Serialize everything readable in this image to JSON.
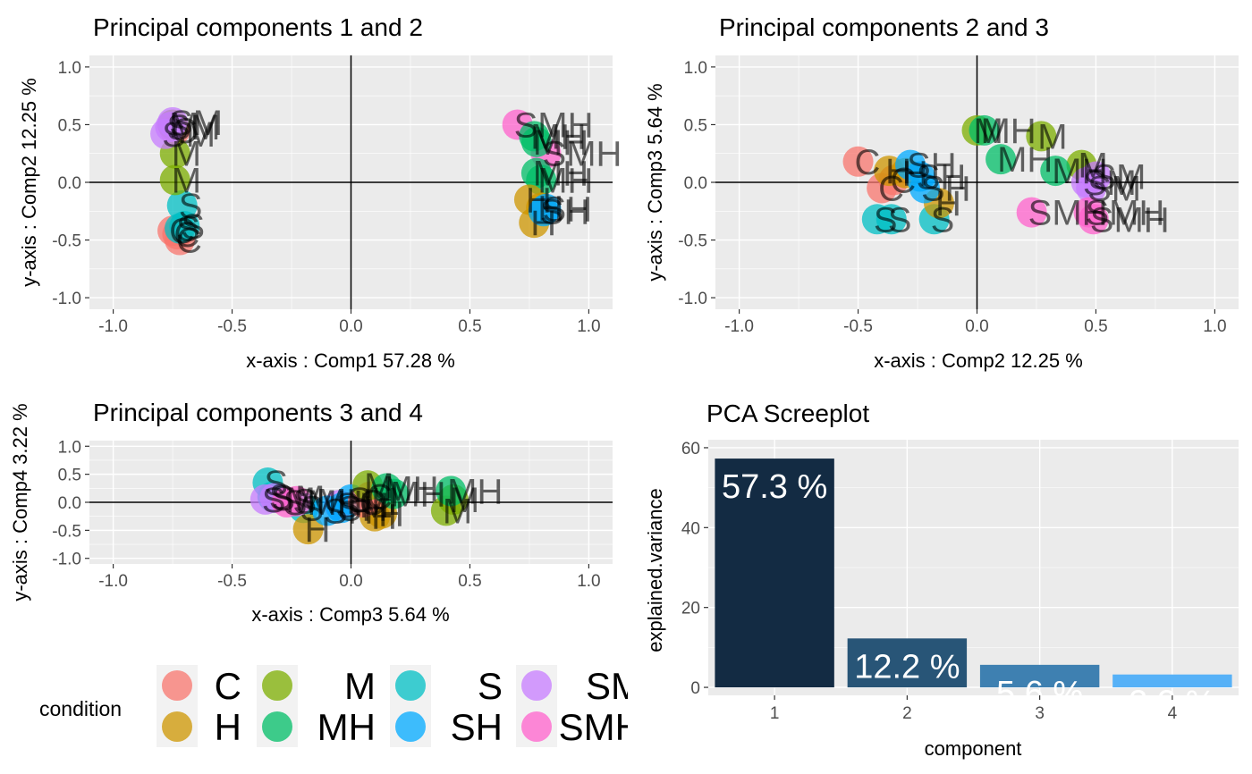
{
  "figure": {
    "legend": {
      "title": "condition",
      "entries": [
        {
          "label": "C",
          "color": "#F8766D"
        },
        {
          "label": "H",
          "color": "#CD9600"
        },
        {
          "label": "M",
          "color": "#7CAE00"
        },
        {
          "label": "MH",
          "color": "#00BE67"
        },
        {
          "label": "S",
          "color": "#00BFC4"
        },
        {
          "label": "SH",
          "color": "#00A9FF"
        },
        {
          "label": "SM",
          "color": "#C77CFF"
        },
        {
          "label": "SMH",
          "color": "#FF61CC"
        }
      ]
    }
  },
  "chart_data": [
    {
      "type": "scatter",
      "title": "Principal components 1 and 2",
      "xlabel": "x-axis : Comp1  57.28 %",
      "ylabel": "y-axis : Comp2  12.25 %",
      "xlim": [
        -1.1,
        1.1
      ],
      "ylim": [
        -1.1,
        1.1
      ],
      "x_ticks": [
        -1.0,
        -0.5,
        0.0,
        0.5,
        1.0
      ],
      "x_tick_labels": [
        "-1.0",
        "-0.5",
        "0.0",
        "0.5",
        "1.0"
      ],
      "y_ticks": [
        -1.0,
        -0.5,
        0.0,
        0.5,
        1.0
      ],
      "y_tick_labels": [
        "-1.0",
        "-0.5",
        "0.0",
        "0.5",
        "1.0"
      ],
      "points": [
        {
          "x": -0.75,
          "y": -0.42,
          "label": "C"
        },
        {
          "x": -0.73,
          "y": -0.45,
          "label": "C"
        },
        {
          "x": -0.72,
          "y": -0.5,
          "label": "C"
        },
        {
          "x": -0.74,
          "y": 0.45,
          "label": "C"
        },
        {
          "x": -0.72,
          "y": -0.4,
          "label": "S"
        },
        {
          "x": -0.7,
          "y": -0.38,
          "label": "S"
        },
        {
          "x": -0.71,
          "y": -0.2,
          "label": "S"
        },
        {
          "x": -0.74,
          "y": 0.25,
          "label": "M"
        },
        {
          "x": -0.74,
          "y": 0.02,
          "label": "M"
        },
        {
          "x": -0.75,
          "y": 0.5,
          "label": "M"
        },
        {
          "x": -0.78,
          "y": 0.42,
          "label": "SM"
        },
        {
          "x": -0.76,
          "y": 0.48,
          "label": "SM"
        },
        {
          "x": -0.75,
          "y": 0.52,
          "label": "SM"
        },
        {
          "x": 0.7,
          "y": 0.5,
          "label": "SMH"
        },
        {
          "x": 0.82,
          "y": 0.25,
          "label": "SMH"
        },
        {
          "x": 0.77,
          "y": 0.4,
          "label": "MH"
        },
        {
          "x": 0.78,
          "y": 0.35,
          "label": "MH"
        },
        {
          "x": 0.78,
          "y": 0.08,
          "label": "MH"
        },
        {
          "x": 0.8,
          "y": 0.02,
          "label": "MH"
        },
        {
          "x": 0.75,
          "y": -0.15,
          "label": "H"
        },
        {
          "x": 0.77,
          "y": -0.35,
          "label": "H"
        },
        {
          "x": 0.8,
          "y": -0.22,
          "label": "H"
        },
        {
          "x": 0.81,
          "y": -0.25,
          "label": "SH"
        },
        {
          "x": 0.82,
          "y": -0.23,
          "label": "SH"
        }
      ]
    },
    {
      "type": "scatter",
      "title": "Principal components 2 and 3",
      "xlabel": "x-axis : Comp2  12.25 %",
      "ylabel": "y-axis : Comp3  5.64 %",
      "xlim": [
        -1.1,
        1.1
      ],
      "ylim": [
        -1.1,
        1.1
      ],
      "x_ticks": [
        -1.0,
        -0.5,
        0.0,
        0.5,
        1.0
      ],
      "x_tick_labels": [
        "-1.0",
        "-0.5",
        "0.0",
        "0.5",
        "1.0"
      ],
      "y_ticks": [
        -1.0,
        -0.5,
        0.0,
        0.5,
        1.0
      ],
      "y_tick_labels": [
        "-1.0",
        "-0.5",
        "0.0",
        "0.5",
        "1.0"
      ],
      "points": [
        {
          "x": -0.5,
          "y": 0.18,
          "label": "C"
        },
        {
          "x": -0.4,
          "y": -0.05,
          "label": "C"
        },
        {
          "x": -0.35,
          "y": 0.02,
          "label": "C"
        },
        {
          "x": -0.42,
          "y": -0.32,
          "label": "S"
        },
        {
          "x": -0.36,
          "y": -0.32,
          "label": "S"
        },
        {
          "x": -0.18,
          "y": -0.32,
          "label": "S"
        },
        {
          "x": -0.37,
          "y": 0.1,
          "label": "H"
        },
        {
          "x": -0.3,
          "y": 0.08,
          "label": "H"
        },
        {
          "x": -0.16,
          "y": -0.18,
          "label": "H"
        },
        {
          "x": -0.28,
          "y": 0.15,
          "label": "SH"
        },
        {
          "x": -0.24,
          "y": 0.05,
          "label": "SH"
        },
        {
          "x": -0.22,
          "y": -0.05,
          "label": "SH"
        },
        {
          "x": 0.0,
          "y": 0.45,
          "label": "M"
        },
        {
          "x": 0.27,
          "y": 0.4,
          "label": "M"
        },
        {
          "x": 0.44,
          "y": 0.15,
          "label": "M"
        },
        {
          "x": 0.03,
          "y": 0.45,
          "label": "MH"
        },
        {
          "x": 0.1,
          "y": 0.2,
          "label": "MH"
        },
        {
          "x": 0.33,
          "y": 0.1,
          "label": "MH"
        },
        {
          "x": 0.46,
          "y": 0.0,
          "label": "SM"
        },
        {
          "x": 0.48,
          "y": -0.05,
          "label": "SM"
        },
        {
          "x": 0.5,
          "y": 0.05,
          "label": "SM"
        },
        {
          "x": 0.23,
          "y": -0.26,
          "label": "SMH"
        },
        {
          "x": 0.47,
          "y": -0.26,
          "label": "SMH"
        },
        {
          "x": 0.49,
          "y": -0.32,
          "label": "SMH"
        }
      ]
    },
    {
      "type": "scatter",
      "title": "Principal components 3 and 4",
      "xlabel": "x-axis : Comp3  5.64 %",
      "ylabel": "y-axis : Comp4  3.22 %",
      "xlim": [
        -1.1,
        1.1
      ],
      "ylim": [
        -1.1,
        1.1
      ],
      "x_ticks": [
        -1.0,
        -0.5,
        0.0,
        0.5,
        1.0
      ],
      "x_tick_labels": [
        "-1.0",
        "-0.5",
        "0.0",
        "0.5",
        "1.0"
      ],
      "y_ticks": [
        -1.0,
        -0.5,
        0.0,
        0.5,
        1.0
      ],
      "y_tick_labels": [
        "-1.0",
        "-0.5",
        "0.0",
        "0.5",
        "1.0"
      ],
      "points": [
        {
          "x": -0.35,
          "y": 0.35,
          "label": "S"
        },
        {
          "x": -0.33,
          "y": 0.1,
          "label": "S"
        },
        {
          "x": -0.2,
          "y": -0.1,
          "label": "S"
        },
        {
          "x": -0.36,
          "y": 0.05,
          "label": "SM"
        },
        {
          "x": -0.32,
          "y": 0.08,
          "label": "SM"
        },
        {
          "x": -0.05,
          "y": -0.05,
          "label": "SM"
        },
        {
          "x": -0.27,
          "y": 0.0,
          "label": "SMH"
        },
        {
          "x": -0.23,
          "y": 0.02,
          "label": "SMH"
        },
        {
          "x": -0.18,
          "y": -0.48,
          "label": "H"
        },
        {
          "x": 0.1,
          "y": -0.25,
          "label": "H"
        },
        {
          "x": 0.13,
          "y": -0.2,
          "label": "H"
        },
        {
          "x": -0.1,
          "y": -0.15,
          "label": "SH"
        },
        {
          "x": -0.04,
          "y": -0.1,
          "label": "SH"
        },
        {
          "x": 0.0,
          "y": 0.05,
          "label": "SH"
        },
        {
          "x": 0.05,
          "y": 0.0,
          "label": "C"
        },
        {
          "x": 0.08,
          "y": 0.1,
          "label": "C"
        },
        {
          "x": 0.07,
          "y": 0.3,
          "label": "M"
        },
        {
          "x": 0.4,
          "y": -0.15,
          "label": "M"
        },
        {
          "x": 0.43,
          "y": 0.05,
          "label": "M"
        },
        {
          "x": 0.15,
          "y": 0.25,
          "label": "MH"
        },
        {
          "x": 0.18,
          "y": 0.15,
          "label": "MH"
        },
        {
          "x": 0.42,
          "y": 0.2,
          "label": "MH"
        }
      ]
    },
    {
      "type": "bar",
      "title": "PCA Screeplot",
      "xlabel": "component",
      "ylabel": "explained.variance",
      "categories": [
        "1",
        "2",
        "3",
        "4"
      ],
      "values": [
        57.28,
        12.25,
        5.64,
        3.22
      ],
      "value_labels": [
        "57.3 %",
        "12.2 %",
        "5.6 %",
        "3.2 %"
      ],
      "bar_colors": [
        "#132B43",
        "#285577",
        "#3E80B1",
        "#56B1F7"
      ],
      "ylim": [
        -2,
        62
      ],
      "y_ticks": [
        0,
        20,
        40,
        60
      ],
      "y_tick_labels": [
        "0",
        "20",
        "40",
        "60"
      ]
    }
  ]
}
